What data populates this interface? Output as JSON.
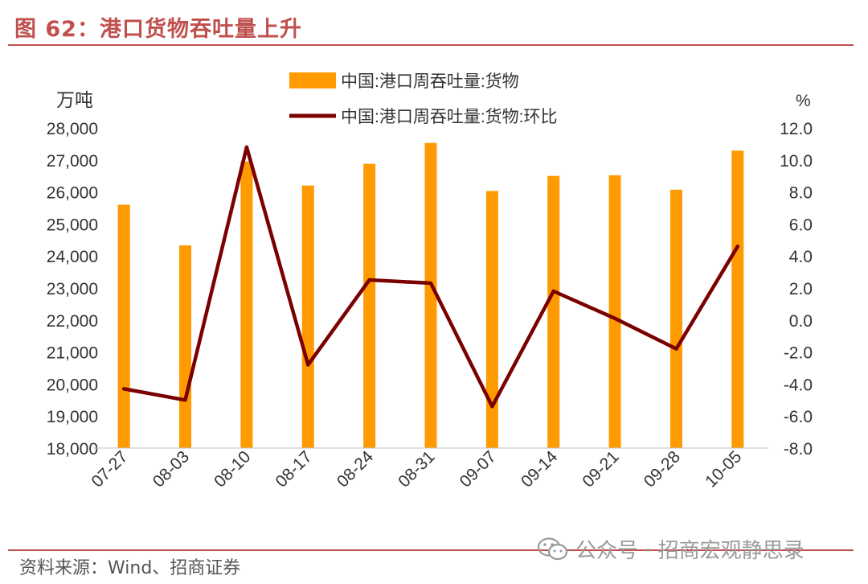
{
  "header": {
    "title": "图 62：港口货物吞吐量上升"
  },
  "footer": {
    "source": "资料来源：Wind、招商证券",
    "watermark": "公众号 · 招商宏观静思录"
  },
  "colors": {
    "bar": "#ff9a00",
    "line": "#7b0000",
    "accent": "#c0504d",
    "text": "#333333"
  },
  "chart_data": {
    "type": "bar",
    "categories": [
      "07-27",
      "08-03",
      "08-10",
      "08-17",
      "08-24",
      "08-31",
      "09-07",
      "09-14",
      "09-21",
      "09-28",
      "10-05"
    ],
    "series": [
      {
        "name": "中国:港口周吞吐量:货物",
        "type": "bar",
        "axis": "left",
        "values": [
          25600,
          24330,
          26950,
          26200,
          26880,
          27530,
          26030,
          26500,
          26520,
          26070,
          27290
        ]
      },
      {
        "name": "中国:港口周吞吐量:货物:环比",
        "type": "line",
        "axis": "right",
        "values": [
          -4.3,
          -5.0,
          10.8,
          -2.8,
          2.5,
          2.3,
          -5.4,
          1.8,
          0.1,
          -1.8,
          4.6
        ]
      }
    ],
    "ylabel_left": "万吨",
    "ylabel_right": "%",
    "ylim_left": [
      18000,
      28000
    ],
    "ylim_right": [
      -8.0,
      12.0
    ],
    "yticks_left": [
      "18,000",
      "19,000",
      "20,000",
      "21,000",
      "22,000",
      "23,000",
      "24,000",
      "25,000",
      "26,000",
      "27,000",
      "28,000"
    ],
    "yticks_right": [
      "-8.0",
      "-6.0",
      "-4.0",
      "-2.0",
      "0.0",
      "2.0",
      "4.0",
      "6.0",
      "8.0",
      "10.0",
      "12.0"
    ],
    "legend_position": "top-center",
    "grid": false
  }
}
